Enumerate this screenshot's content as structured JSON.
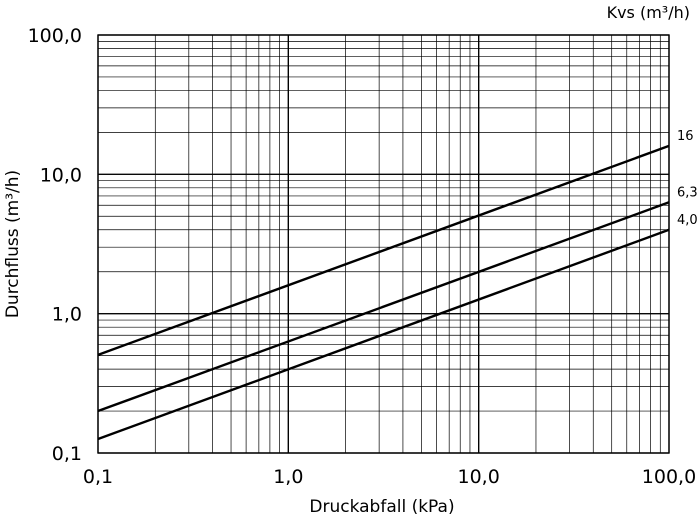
{
  "chart_data": {
    "type": "line",
    "legend_title": "Kvs (m³/h)",
    "xlabel": "Druckabfall (kPa)",
    "ylabel": "Durchfluss (m³/h)",
    "x_scale": "log",
    "y_scale": "log",
    "xlim": [
      0.1,
      100
    ],
    "ylim": [
      0.1,
      100
    ],
    "grid": true,
    "x_ticks": [
      {
        "value": 0.1,
        "label": "0,1"
      },
      {
        "value": 1,
        "label": "1,0"
      },
      {
        "value": 10,
        "label": "10,0"
      },
      {
        "value": 100,
        "label": "100,0"
      }
    ],
    "y_ticks": [
      {
        "value": 0.1,
        "label": "0,1"
      },
      {
        "value": 1,
        "label": "1,0"
      },
      {
        "value": 10,
        "label": "10,0"
      },
      {
        "value": 100,
        "label": "100,0"
      }
    ],
    "series": [
      {
        "name": "16",
        "x": [
          0.1,
          100
        ],
        "y": [
          0.506,
          16
        ]
      },
      {
        "name": "6,3",
        "x": [
          0.1,
          100
        ],
        "y": [
          0.2,
          6.3
        ]
      },
      {
        "name": "4,0",
        "x": [
          0.1,
          100
        ],
        "y": [
          0.126,
          4.0
        ]
      }
    ]
  }
}
